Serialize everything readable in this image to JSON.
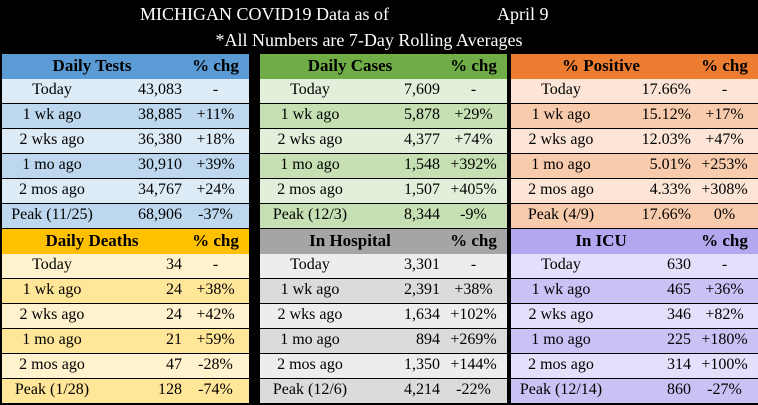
{
  "header": {
    "title": "MICHIGAN COVID19 Data as of",
    "date": "April 9",
    "subtitle": "*All Numbers are 7-Day Rolling Averages"
  },
  "panels": [
    {
      "title": "Daily Tests",
      "chg": "% chg",
      "colors": {
        "header": "#5b9bd5",
        "light": "#ddebf7",
        "dark": "#bdd7ee"
      },
      "rows": [
        {
          "label": "Today",
          "value": "43,083",
          "chg": "-"
        },
        {
          "label": "1 wk ago",
          "value": "38,885",
          "chg": "+11%"
        },
        {
          "label": "2 wks ago",
          "value": "36,380",
          "chg": "+18%"
        },
        {
          "label": "1 mo ago",
          "value": "30,910",
          "chg": "+39%"
        },
        {
          "label": "2 mos ago",
          "value": "34,767",
          "chg": "+24%"
        },
        {
          "label": "Peak (11/25)",
          "value": "68,906",
          "chg": "-37%"
        }
      ]
    },
    {
      "title": "Daily Cases",
      "chg": "% chg",
      "colors": {
        "header": "#70ad47",
        "light": "#e2efda",
        "dark": "#c6e0b4"
      },
      "rows": [
        {
          "label": "Today",
          "value": "7,609",
          "chg": "-"
        },
        {
          "label": "1 wk ago",
          "value": "5,878",
          "chg": "+29%"
        },
        {
          "label": "2 wks ago",
          "value": "4,377",
          "chg": "+74%"
        },
        {
          "label": "1 mo ago",
          "value": "1,548",
          "chg": "+392%"
        },
        {
          "label": "2 mos ago",
          "value": "1,507",
          "chg": "+405%"
        },
        {
          "label": "Peak (12/3)",
          "value": "8,344",
          "chg": "-9%"
        }
      ]
    },
    {
      "title": "% Positive",
      "chg": "% chg",
      "colors": {
        "header": "#ed7d31",
        "light": "#fce4d6",
        "dark": "#f8cbad"
      },
      "rows": [
        {
          "label": "Today",
          "value": "17.66%",
          "chg": "-"
        },
        {
          "label": "1 wk ago",
          "value": "15.12%",
          "chg": "+17%"
        },
        {
          "label": "2 wks ago",
          "value": "12.03%",
          "chg": "+47%"
        },
        {
          "label": "1 mo ago",
          "value": "5.01%",
          "chg": "+253%"
        },
        {
          "label": "2 mos ago",
          "value": "4.33%",
          "chg": "+308%"
        },
        {
          "label": "Peak (4/9)",
          "value": "17.66%",
          "chg": "0%"
        }
      ]
    },
    {
      "title": "Daily Deaths",
      "chg": "% chg",
      "colors": {
        "header": "#ffc000",
        "light": "#fff2cc",
        "dark": "#ffe699"
      },
      "rows": [
        {
          "label": "Today",
          "value": "34",
          "chg": "-"
        },
        {
          "label": "1 wk ago",
          "value": "24",
          "chg": "+38%"
        },
        {
          "label": "2 wks ago",
          "value": "24",
          "chg": "+42%"
        },
        {
          "label": "1 mo ago",
          "value": "21",
          "chg": "+59%"
        },
        {
          "label": "2 mos ago",
          "value": "47",
          "chg": "-28%"
        },
        {
          "label": "Peak (1/28)",
          "value": "128",
          "chg": "-74%"
        }
      ]
    },
    {
      "title": "In Hospital",
      "chg": "% chg",
      "colors": {
        "header": "#a5a5a5",
        "light": "#ededed",
        "dark": "#dbdbdb"
      },
      "rows": [
        {
          "label": "Today",
          "value": "3,301",
          "chg": "-"
        },
        {
          "label": "1 wk ago",
          "value": "2,391",
          "chg": "+38%"
        },
        {
          "label": "2 wks ago",
          "value": "1,634",
          "chg": "+102%"
        },
        {
          "label": "1 mo ago",
          "value": "894",
          "chg": "+269%"
        },
        {
          "label": "2 mos ago",
          "value": "1,350",
          "chg": "+144%"
        },
        {
          "label": "Peak (12/6)",
          "value": "4,214",
          "chg": "-22%"
        }
      ]
    },
    {
      "title": "In ICU",
      "chg": "% chg",
      "colors": {
        "header": "#b4a7f0",
        "light": "#e4e0fb",
        "dark": "#c9c2f5"
      },
      "rows": [
        {
          "label": "Today",
          "value": "630",
          "chg": "-"
        },
        {
          "label": "1 wk ago",
          "value": "465",
          "chg": "+36%"
        },
        {
          "label": "2 wks ago",
          "value": "346",
          "chg": "+82%"
        },
        {
          "label": "1 mo ago",
          "value": "225",
          "chg": "+180%"
        },
        {
          "label": "2 mos ago",
          "value": "314",
          "chg": "+100%"
        },
        {
          "label": "Peak (12/14)",
          "value": "860",
          "chg": "-27%"
        }
      ]
    }
  ]
}
